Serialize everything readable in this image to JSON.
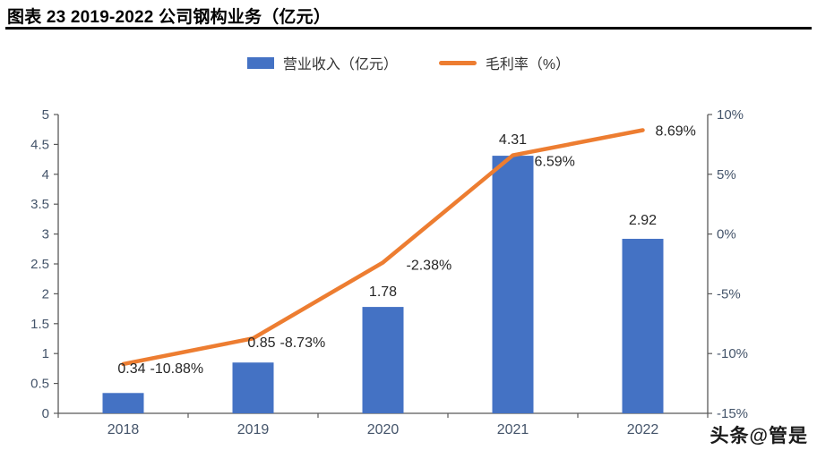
{
  "title": "图表 23 2019-2022 公司钢构业务（亿元）",
  "watermark": "头条@管是",
  "colors": {
    "bar": "#4472C4",
    "line": "#ED7D31",
    "axis_line": "#595959",
    "tick_text": "#44546A",
    "label_text": "#262626"
  },
  "chart_data": {
    "type": "bar",
    "subtype": "combo-bar-line-dual-axis",
    "title": "图表 23 2019-2022 公司钢构业务（亿元）",
    "categories": [
      "2018",
      "2019",
      "2020",
      "2021",
      "2022"
    ],
    "series": [
      {
        "name": "营业收入（亿元）",
        "type": "bar",
        "axis": "left",
        "values": [
          0.34,
          0.85,
          1.78,
          4.31,
          2.92
        ],
        "labels": [
          "0.34",
          "0.85",
          "1.78",
          "4.31",
          "2.92"
        ]
      },
      {
        "name": "毛利率（%）",
        "type": "line",
        "axis": "right",
        "values": [
          -10.88,
          -8.73,
          -2.38,
          6.59,
          8.69
        ],
        "labels": [
          "-10.88%",
          "-8.73%",
          "-2.38%",
          "6.59%",
          "8.69%"
        ]
      }
    ],
    "left_axis": {
      "min": 0,
      "max": 5,
      "step": 0.5,
      "ticks": [
        "0",
        "0.5",
        "1",
        "1.5",
        "2",
        "2.5",
        "3",
        "3.5",
        "4",
        "4.5",
        "5"
      ]
    },
    "right_axis": {
      "min": -15,
      "max": 10,
      "step": 5,
      "ticks": [
        "-15%",
        "-10%",
        "-5%",
        "0%",
        "5%",
        "10%"
      ]
    },
    "legend_position": "top",
    "grid": false
  }
}
